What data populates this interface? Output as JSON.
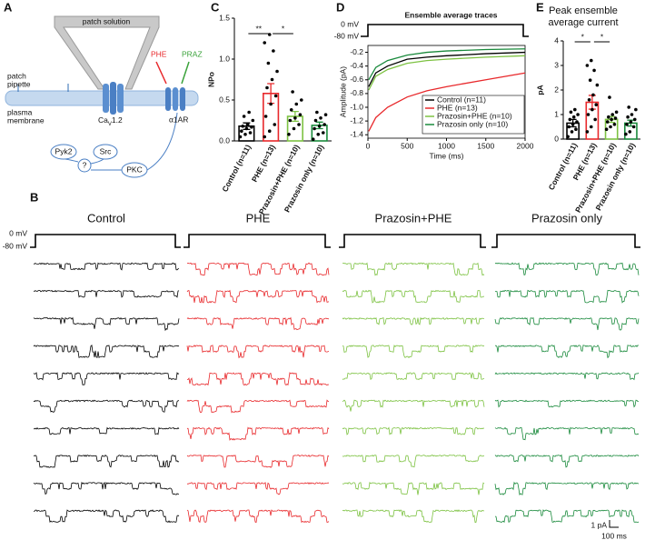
{
  "panels": [
    "A",
    "B",
    "C",
    "D",
    "E"
  ],
  "diagram": {
    "patch_solution": "patch solution",
    "patch_pipette": [
      "patch",
      "pipette"
    ],
    "plasma_membrane": [
      "plasma",
      "membrane"
    ],
    "channel": [
      "Ca",
      "V",
      "1.2"
    ],
    "agonist": "PHE",
    "antagonist": "PRAZ",
    "receptor": "α1AR",
    "pyk2": "Pyk2",
    "src": "Src",
    "unknown": "?",
    "pkc": "PKC"
  },
  "chart_data": [
    {
      "type": "bar",
      "ylabel": "NPo",
      "categories": [
        "Control (n=11)",
        "PHE (n=13)",
        "Prazosin+PHE (n=10)",
        "Prazosin only (n=10)"
      ],
      "values": [
        0.18,
        0.58,
        0.3,
        0.19
      ],
      "errors": [
        0.04,
        0.12,
        0.06,
        0.04
      ],
      "colors": [
        "#000000",
        "#e8282b",
        "#7dc242",
        "#1a8a3c"
      ],
      "points": [
        [
          0.05,
          0.08,
          0.1,
          0.12,
          0.15,
          0.17,
          0.18,
          0.2,
          0.25,
          0.3,
          0.35
        ],
        [
          0.05,
          0.12,
          0.2,
          0.3,
          0.45,
          0.55,
          0.65,
          0.75,
          0.85,
          0.95,
          1.1,
          1.2,
          1.3
        ],
        [
          0.08,
          0.15,
          0.2,
          0.25,
          0.28,
          0.32,
          0.38,
          0.45,
          0.5,
          0.6
        ],
        [
          0.02,
          0.08,
          0.1,
          0.15,
          0.18,
          0.2,
          0.25,
          0.28,
          0.32,
          0.35
        ]
      ],
      "annotations": [
        "**",
        "*"
      ],
      "ylim": [
        0,
        1.5
      ],
      "yticks": [
        {
          "value": 0,
          "label": "0.0"
        },
        0.5,
        {
          "value": 1,
          "label": "1.0"
        },
        1.5
      ]
    },
    {
      "type": "line",
      "title": "Ensemble average traces",
      "ylabel": "Amplitude (pA)",
      "xlabel": "Time (ms)",
      "voltage_labels": [
        "0 mV",
        "-80 mV"
      ],
      "x": [
        10,
        100,
        250,
        500,
        750,
        1000,
        1500,
        2000
      ],
      "series": [
        {
          "name": "Control (n=11)",
          "color": "#000000",
          "values": [
            -0.7,
            -0.5,
            -0.4,
            -0.3,
            -0.27,
            -0.25,
            -0.22,
            -0.2
          ]
        },
        {
          "name": "PHE (n=13)",
          "color": "#e8282b",
          "values": [
            -1.35,
            -1.15,
            -1.0,
            -0.85,
            -0.76,
            -0.7,
            -0.6,
            -0.5
          ]
        },
        {
          "name": "Prazosin+PHE (n=10)",
          "color": "#7dc242",
          "values": [
            -0.75,
            -0.55,
            -0.45,
            -0.36,
            -0.32,
            -0.3,
            -0.27,
            -0.25
          ]
        },
        {
          "name": "Prazosin only (n=10)",
          "color": "#1a8a3c",
          "values": [
            -0.6,
            -0.42,
            -0.32,
            -0.24,
            -0.2,
            -0.18,
            -0.16,
            -0.15
          ]
        }
      ],
      "xlim": [
        0,
        2000
      ],
      "xticks": [
        0,
        500,
        1000,
        1500,
        2000
      ],
      "ylim": [
        -1.45,
        -0.1
      ],
      "yticks": [
        -1.4,
        -1.2,
        {
          "value": -1,
          "label": "-1.0"
        },
        -0.8,
        -0.6,
        -0.4,
        -0.2
      ]
    },
    {
      "type": "bar",
      "title": "Peak ensemble average current",
      "ylabel": "pA",
      "categories": [
        "Control (n=11)",
        "PHE (n=13)",
        "Prazosin+PHE (n=10)",
        "Prazosin only (n=10)"
      ],
      "values": [
        0.65,
        1.5,
        0.8,
        0.65
      ],
      "errors": [
        0.15,
        0.28,
        0.12,
        0.12
      ],
      "colors": [
        "#000000",
        "#e8282b",
        "#7dc242",
        "#1a8a3c"
      ],
      "points": [
        [
          0.1,
          0.3,
          0.4,
          0.5,
          0.6,
          0.7,
          0.8,
          0.9,
          1.0,
          1.1,
          1.2
        ],
        [
          0.3,
          0.5,
          0.8,
          1.0,
          1.2,
          1.4,
          1.6,
          1.8,
          2.2,
          2.4,
          2.8,
          3.0,
          3.2
        ],
        [
          0.4,
          0.5,
          0.6,
          0.7,
          0.8,
          0.85,
          0.9,
          1.0,
          1.1,
          1.7
        ],
        [
          0.2,
          0.3,
          0.5,
          0.6,
          0.7,
          0.8,
          0.9,
          1.0,
          1.2,
          1.3
        ]
      ],
      "annotations": [
        "*",
        "*"
      ],
      "ylim": [
        0,
        4
      ],
      "yticks": [
        0,
        1,
        2,
        3,
        4
      ]
    }
  ],
  "traces": {
    "columns": [
      "Control",
      "PHE",
      "Prazosin+PHE",
      "Prazosin only"
    ],
    "colors": [
      "#000000",
      "#e8282b",
      "#7dc242",
      "#1a8a3c"
    ],
    "voltage_labels": [
      "0 mV",
      "-80 mV"
    ],
    "scale_bar": [
      "1 pA",
      "100 ms"
    ]
  }
}
